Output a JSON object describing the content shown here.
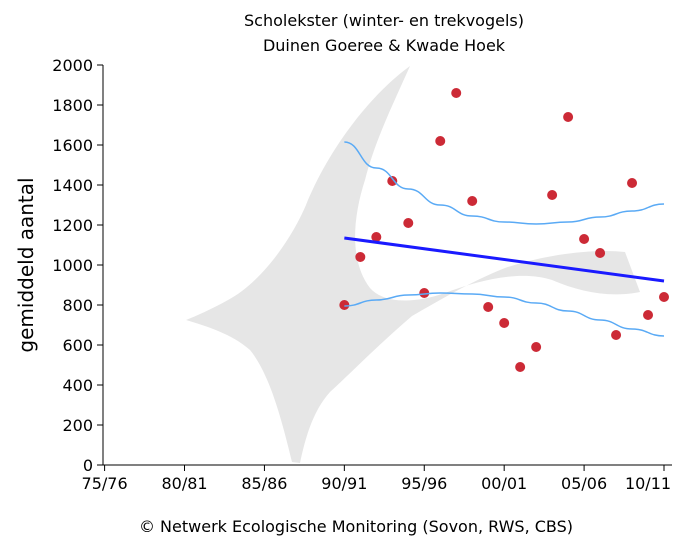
{
  "chart_data": {
    "type": "scatter",
    "title": "Scholekster (winter- en trekvogels)",
    "subtitle": "Duinen Goeree & Kwade Hoek",
    "xlabel": "",
    "ylabel": "gemiddeld aantal",
    "x_tick_labels": [
      "75/76",
      "80/81",
      "85/86",
      "90/91",
      "95/96",
      "00/01",
      "05/06",
      "10/11"
    ],
    "x_tick_years": [
      1975,
      1980,
      1985,
      1990,
      1995,
      2000,
      2005,
      2010
    ],
    "xlim": [
      1974.9,
      2010.5
    ],
    "y_ticks": [
      0,
      200,
      400,
      600,
      800,
      1000,
      1200,
      1400,
      1600,
      1800,
      2000
    ],
    "ylim": [
      0,
      2000
    ],
    "series": [
      {
        "kind": "points",
        "color": "#cc2a36",
        "x": [
          1990,
          1991,
          1992,
          1993,
          1994,
          1995,
          1996,
          1997,
          1998,
          1999,
          2000,
          2001,
          2002,
          2003,
          2004,
          2005,
          2006,
          2007,
          2008,
          2009,
          2010
        ],
        "y": [
          800,
          1040,
          1140,
          1420,
          1210,
          860,
          1620,
          1860,
          1320,
          790,
          710,
          490,
          590,
          1350,
          1740,
          1130,
          1060,
          650,
          1410,
          750,
          840
        ]
      },
      {
        "kind": "trend",
        "color": "#1a1aff",
        "x": [
          1990,
          2010
        ],
        "y": [
          1135,
          920
        ]
      },
      {
        "kind": "upper-band",
        "color": "#5aaaf5",
        "x": [
          1990,
          1992,
          1994,
          1996,
          1998,
          2000,
          2002,
          2004,
          2006,
          2008,
          2010
        ],
        "y": [
          1615,
          1485,
          1380,
          1300,
          1245,
          1215,
          1205,
          1215,
          1240,
          1270,
          1305
        ]
      },
      {
        "kind": "lower-band",
        "color": "#5aaaf5",
        "x": [
          1990,
          1992,
          1994,
          1996,
          1998,
          2000,
          2002,
          2004,
          2006,
          2008,
          2010
        ],
        "y": [
          795,
          825,
          850,
          860,
          855,
          840,
          810,
          770,
          725,
          680,
          645
        ]
      }
    ],
    "background_bird_color": "#e6e6e6",
    "grid": false
  },
  "footer": "©  Netwerk Ecologische Monitoring (Sovon, RWS, CBS)"
}
